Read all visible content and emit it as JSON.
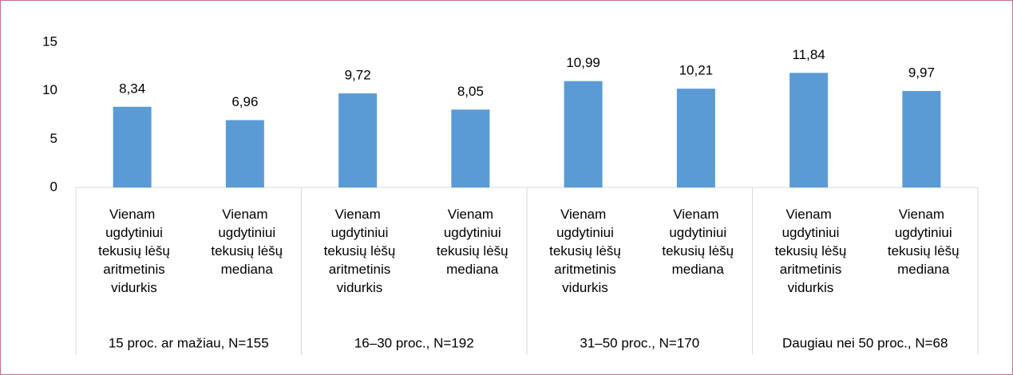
{
  "chart_data": {
    "type": "bar",
    "categories": [
      "Vienam ugdytiniui tekusių lėšų aritmetinis vidurkis",
      "Vienam ugdytiniui tekusių lėšų mediana",
      "Vienam ugdytiniui tekusių lėšų aritmetinis vidurkis",
      "Vienam ugdytiniui tekusių lėšų mediana",
      "Vienam ugdytiniui tekusių lėšų aritmetinis vidurkis",
      "Vienam ugdytiniui tekusių lėšų mediana",
      "Vienam ugdytiniui tekusių lėšų aritmetinis vidurkis",
      "Vienam ugdytiniui tekusių lėšų mediana"
    ],
    "groups": [
      "15 proc. ar mažiau, N=155",
      "16–30 proc., N=192",
      "31–50 proc., N=170",
      "Daugiau nei 50 proc., N=68"
    ],
    "values": [
      8.34,
      6.96,
      9.72,
      8.05,
      10.99,
      10.21,
      11.84,
      9.97
    ],
    "value_labels": [
      "8,34",
      "6,96",
      "9,72",
      "8,05",
      "10,99",
      "10,21",
      "11,84",
      "9,97"
    ],
    "color": "#5b9bd5",
    "ylim": [
      0,
      15
    ],
    "yticks": [
      0,
      5,
      10,
      15
    ],
    "grid": false
  }
}
